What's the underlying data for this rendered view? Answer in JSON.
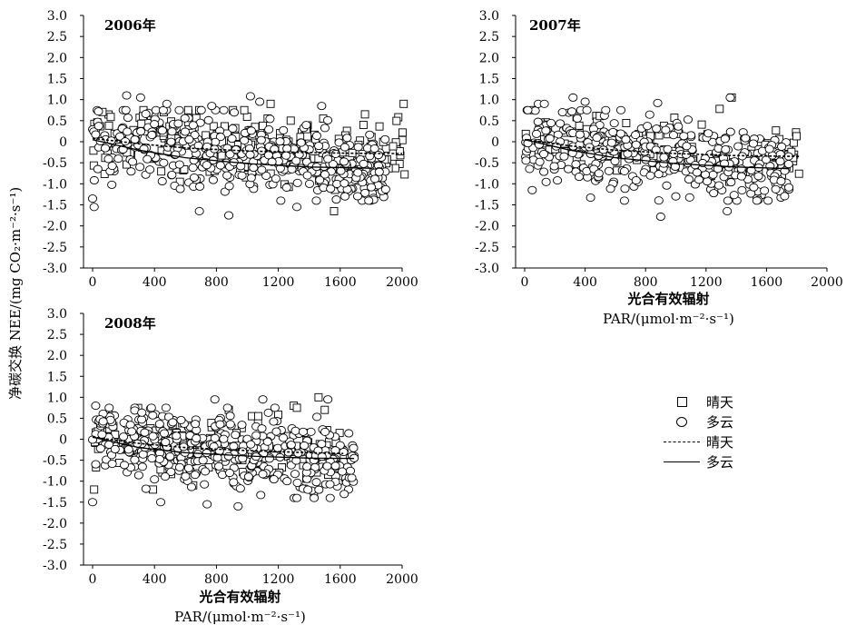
{
  "y_axis_label": "净碳交换 NEE/(mg CO₂·m⁻²·s⁻¹)",
  "legend": [
    {
      "symbol": "square",
      "label": "晴天"
    },
    {
      "symbol": "circle",
      "label": "多云"
    },
    {
      "symbol": "dashed-line",
      "label": "晴天"
    },
    {
      "symbol": "solid-line",
      "label": "多云"
    }
  ],
  "chart_data": [
    {
      "type": "scatter",
      "title": "2006年",
      "xlabel": "",
      "xlabel_sub": "",
      "ylabel": "净碳交换 NEE/(mg CO₂·m⁻²·s⁻¹)",
      "xlim": [
        0,
        2000
      ],
      "ylim": [
        -3.0,
        3.0
      ],
      "x_ticks": [
        "0",
        "400",
        "800",
        "1200",
        "1600",
        "2000"
      ],
      "y_ticks": [
        "3.0",
        "2.5",
        "2.0",
        "1.5",
        "1.0",
        "0.5",
        "0",
        "-0.5",
        "-1.0",
        "-1.5",
        "-2.0",
        "-2.5",
        "-3.0"
      ],
      "series": [
        {
          "name": "晴天",
          "marker": "square",
          "x_range": [
            0,
            2020
          ],
          "y_center": [
            0.1,
            -0.35
          ],
          "spread": 0.4,
          "count": 230,
          "outliers": [
            [
              460,
              0.7
            ],
            [
              1050,
              0.35
            ],
            [
              1100,
              0.38
            ],
            [
              1150,
              0.9
            ],
            [
              1280,
              0.5
            ],
            [
              1490,
              0.55
            ],
            [
              1750,
              0.4
            ],
            [
              1760,
              0.65
            ],
            [
              2010,
              0.9
            ],
            [
              1560,
              -1.65
            ]
          ]
        },
        {
          "name": "多云",
          "marker": "circle",
          "x_range": [
            0,
            1900
          ],
          "y_center": [
            0.05,
            -0.7
          ],
          "spread": 0.45,
          "count": 420,
          "outliers": [
            [
              220,
              1.1
            ],
            [
              310,
              1.05
            ],
            [
              480,
              0.9
            ],
            [
              560,
              0.75
            ],
            [
              770,
              0.85
            ],
            [
              1020,
              1.08
            ],
            [
              1080,
              0.95
            ],
            [
              1480,
              0.85
            ],
            [
              0,
              -1.35
            ],
            [
              10,
              -1.55
            ],
            [
              880,
              -1.75
            ],
            [
              690,
              -1.65
            ],
            [
              1320,
              -1.55
            ]
          ]
        },
        {
          "name": "晴天",
          "type": "line",
          "style": "dashed",
          "points": [
            [
              0,
              0.08
            ],
            [
              300,
              -0.05
            ],
            [
              600,
              -0.15
            ],
            [
              1000,
              -0.22
            ],
            [
              1400,
              -0.26
            ],
            [
              1800,
              -0.28
            ],
            [
              2000,
              -0.28
            ]
          ]
        },
        {
          "name": "多云",
          "type": "line",
          "style": "solid",
          "points": [
            [
              0,
              0.05
            ],
            [
              300,
              -0.2
            ],
            [
              600,
              -0.38
            ],
            [
              1000,
              -0.52
            ],
            [
              1400,
              -0.6
            ],
            [
              1800,
              -0.63
            ]
          ]
        }
      ]
    },
    {
      "type": "scatter",
      "title": "2007年",
      "xlabel": "光合有效辐射",
      "xlabel_sub": "PAR/(μmol·m⁻²·s⁻¹)",
      "ylabel": "",
      "xlim": [
        0,
        2000
      ],
      "ylim": [
        -3.0,
        3.0
      ],
      "x_ticks": [
        "0",
        "400",
        "800",
        "1200",
        "1600",
        "2000"
      ],
      "y_ticks": [
        "3.0",
        "2.5",
        "2.0",
        "1.5",
        "1.0",
        "0.5",
        "0",
        "-0.5",
        "-1.0",
        "-1.5",
        "-2.0",
        "-2.5",
        "-3.0"
      ],
      "series": [
        {
          "name": "晴天",
          "marker": "square",
          "x_range": [
            0,
            1820
          ],
          "y_center": [
            0.05,
            -0.35
          ],
          "spread": 0.3,
          "count": 140,
          "outliers": [
            [
              1290,
              0.78
            ],
            [
              1370,
              1.05
            ]
          ]
        },
        {
          "name": "多云",
          "marker": "circle",
          "x_range": [
            0,
            1750
          ],
          "y_center": [
            0.05,
            -0.7
          ],
          "spread": 0.45,
          "count": 380,
          "outliers": [
            [
              90,
              0.9
            ],
            [
              130,
              0.9
            ],
            [
              320,
              1.05
            ],
            [
              400,
              0.95
            ],
            [
              880,
              0.92
            ],
            [
              1360,
              1.05
            ],
            [
              250,
              0.7
            ],
            [
              900,
              -1.78
            ],
            [
              1340,
              -1.65
            ],
            [
              50,
              -1.15
            ],
            [
              660,
              -1.4
            ]
          ]
        },
        {
          "name": "晴天",
          "type": "line",
          "style": "dashed",
          "points": [
            [
              0,
              0.05
            ],
            [
              300,
              -0.1
            ],
            [
              600,
              -0.2
            ],
            [
              1000,
              -0.28
            ],
            [
              1400,
              -0.33
            ],
            [
              1820,
              -0.35
            ]
          ]
        },
        {
          "name": "多云",
          "type": "line",
          "style": "solid",
          "points": [
            [
              0,
              0.05
            ],
            [
              300,
              -0.2
            ],
            [
              600,
              -0.38
            ],
            [
              1000,
              -0.52
            ],
            [
              1400,
              -0.6
            ],
            [
              1750,
              -0.64
            ]
          ]
        }
      ]
    },
    {
      "type": "scatter",
      "title": "2008年",
      "xlabel": "光合有效辐射",
      "xlabel_sub": "PAR/(μmol·m⁻²·s⁻¹)",
      "ylabel": "",
      "xlim": [
        0,
        2000
      ],
      "ylim": [
        -3.0,
        3.0
      ],
      "x_ticks": [
        "0",
        "400",
        "800",
        "1200",
        "1600",
        "2000"
      ],
      "y_ticks": [
        "3.0",
        "2.5",
        "2.0",
        "1.5",
        "1.0",
        "0.5",
        "0",
        "-0.5",
        "-1.0",
        "-1.5",
        "-2.0",
        "-2.5",
        "-3.0"
      ],
      "series": [
        {
          "name": "晴天",
          "marker": "square",
          "x_range": [
            0,
            1620
          ],
          "y_center": [
            0.05,
            -0.35
          ],
          "spread": 0.3,
          "count": 150,
          "outliers": [
            [
              880,
              0.7
            ],
            [
              1030,
              0.55
            ],
            [
              1070,
              0.55
            ],
            [
              1300,
              0.8
            ],
            [
              1320,
              0.75
            ],
            [
              1460,
              1.0
            ],
            [
              1500,
              0.7
            ],
            [
              1430,
              -1.25
            ],
            [
              10,
              -1.2
            ],
            [
              390,
              -1.2
            ],
            [
              650,
              -1.1
            ]
          ]
        },
        {
          "name": "多云",
          "marker": "circle",
          "x_range": [
            0,
            1690
          ],
          "y_center": [
            0.05,
            -0.6
          ],
          "spread": 0.42,
          "count": 420,
          "outliers": [
            [
              20,
              0.8
            ],
            [
              380,
              0.75
            ],
            [
              790,
              0.95
            ],
            [
              1100,
              0.95
            ],
            [
              1520,
              0.95
            ],
            [
              1690,
              -0.45
            ],
            [
              0,
              -1.5
            ],
            [
              440,
              -1.5
            ],
            [
              740,
              -1.55
            ],
            [
              940,
              -1.6
            ],
            [
              1320,
              -1.4
            ]
          ]
        },
        {
          "name": "晴天",
          "type": "line",
          "style": "dashed",
          "points": [
            [
              0,
              0.05
            ],
            [
              300,
              -0.1
            ],
            [
              600,
              -0.2
            ],
            [
              1000,
              -0.27
            ],
            [
              1400,
              -0.32
            ],
            [
              1620,
              -0.34
            ]
          ]
        },
        {
          "name": "多云",
          "type": "line",
          "style": "solid",
          "points": [
            [
              0,
              0.05
            ],
            [
              300,
              -0.2
            ],
            [
              600,
              -0.32
            ],
            [
              1000,
              -0.4
            ],
            [
              1400,
              -0.45
            ],
            [
              1690,
              -0.46
            ]
          ]
        }
      ]
    }
  ]
}
